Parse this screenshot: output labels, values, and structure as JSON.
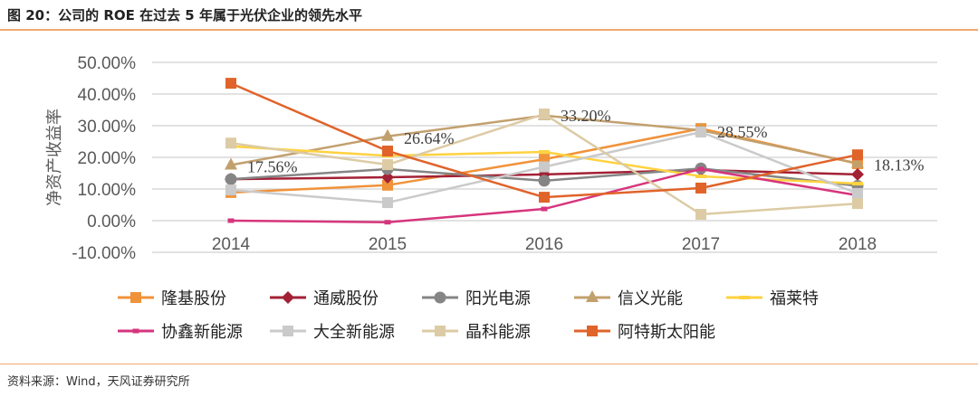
{
  "title": "图 20：公司的 ROE 在过去 5 年属于光伏企业的领先水平",
  "source": "资料来源：Wind，天风证券研究所",
  "chart_data": {
    "type": "line",
    "title": "",
    "xlabel": "",
    "ylabel": "净资产收益率",
    "x": [
      "2014",
      "2015",
      "2016",
      "2017",
      "2018"
    ],
    "ylim": [
      -10,
      50
    ],
    "yticks": [
      "50.00%",
      "40.00%",
      "30.00%",
      "20.00%",
      "10.00%",
      "0.00%",
      "-10.00%"
    ],
    "ytick_values": [
      50,
      40,
      30,
      20,
      10,
      0,
      -10
    ],
    "grid": true,
    "legend": "bottom",
    "series": [
      {
        "name": "隆基股份",
        "color": "#F0923A",
        "marker": "square",
        "values": [
          8.9,
          11.2,
          19.4,
          29.1,
          18.0
        ]
      },
      {
        "name": "通威股份",
        "color": "#A32135",
        "marker": "diamond",
        "values": [
          13.1,
          13.7,
          14.6,
          16.0,
          14.6
        ]
      },
      {
        "name": "阳光电源",
        "color": "#858585",
        "marker": "circle",
        "values": [
          13.1,
          16.3,
          12.6,
          16.5,
          11.0
        ]
      },
      {
        "name": "信义光能",
        "color": "#C2A06E",
        "marker": "triangle",
        "values": [
          17.56,
          26.64,
          33.2,
          28.55,
          18.13
        ]
      },
      {
        "name": "福莱特",
        "color": "#FFD23F",
        "marker": "dash",
        "values": [
          23.5,
          20.5,
          21.7,
          14.0,
          11.7
        ]
      },
      {
        "name": "协鑫新能源",
        "color": "#D6357D",
        "marker": "dot",
        "values": [
          0.0,
          -0.5,
          3.7,
          16.3,
          8.0
        ]
      },
      {
        "name": "大全新能源",
        "color": "#CACACA",
        "marker": "square",
        "values": [
          9.7,
          5.7,
          17.0,
          28.0,
          8.6
        ]
      },
      {
        "name": "晶科能源",
        "color": "#DCCBA4",
        "marker": "square",
        "values": [
          24.5,
          17.7,
          33.7,
          2.0,
          5.4
        ]
      },
      {
        "name": "阿特斯太阳能",
        "color": "#E0632A",
        "marker": "square",
        "values": [
          43.4,
          22.0,
          7.4,
          10.3,
          20.8
        ]
      }
    ],
    "annotations": [
      "17.56%",
      "26.64%",
      "33.20%",
      "28.55%",
      "18.13%"
    ]
  }
}
